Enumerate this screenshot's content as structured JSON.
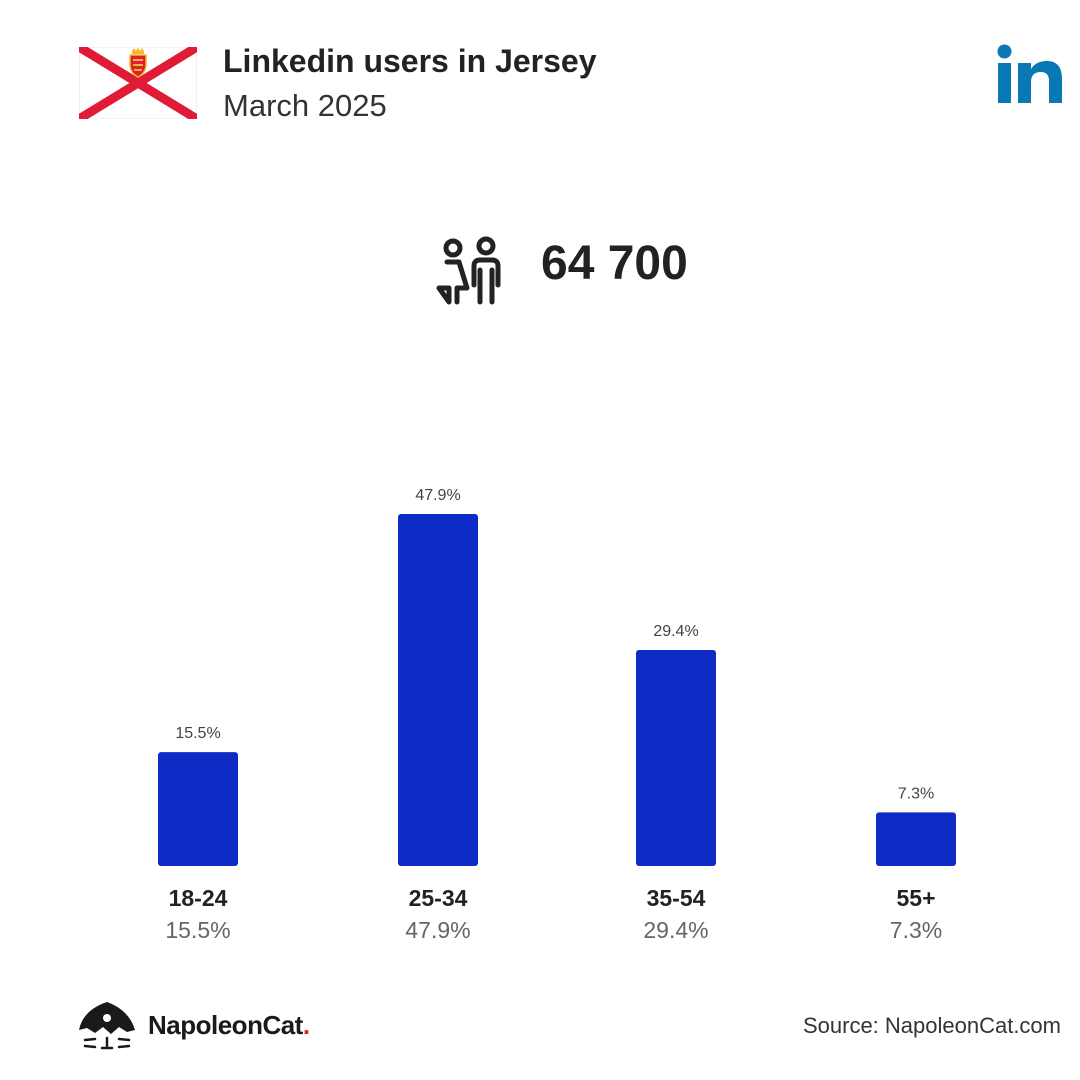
{
  "header": {
    "title": "Linkedin users in Jersey",
    "subtitle": "March 2025"
  },
  "total": {
    "value": "64 700"
  },
  "icons": {
    "flag": "jersey-flag-icon",
    "network": "linkedin-logo-icon",
    "users": "users-icon",
    "brand": "napoleoncat-logo-icon"
  },
  "colors": {
    "bar": "#0f2bc5",
    "flag_red": "#df1b35",
    "linkedin_blue": "#0a78b5",
    "brand_dot": "#e0202b"
  },
  "chart_data": {
    "type": "bar",
    "categories": [
      "18-24",
      "25-34",
      "35-54",
      "55+"
    ],
    "values": [
      15.5,
      47.9,
      29.4,
      7.3
    ],
    "data_labels": [
      "15.5%",
      "47.9%",
      "29.4%",
      "7.3%"
    ],
    "title": "",
    "xlabel": "",
    "ylabel": "",
    "ylim": [
      0,
      47.9
    ],
    "grid": false,
    "legend": "none"
  },
  "footer": {
    "brand_name": "NapoleonCat",
    "brand_dot": ".",
    "source": "Source: NapoleonCat.com"
  }
}
